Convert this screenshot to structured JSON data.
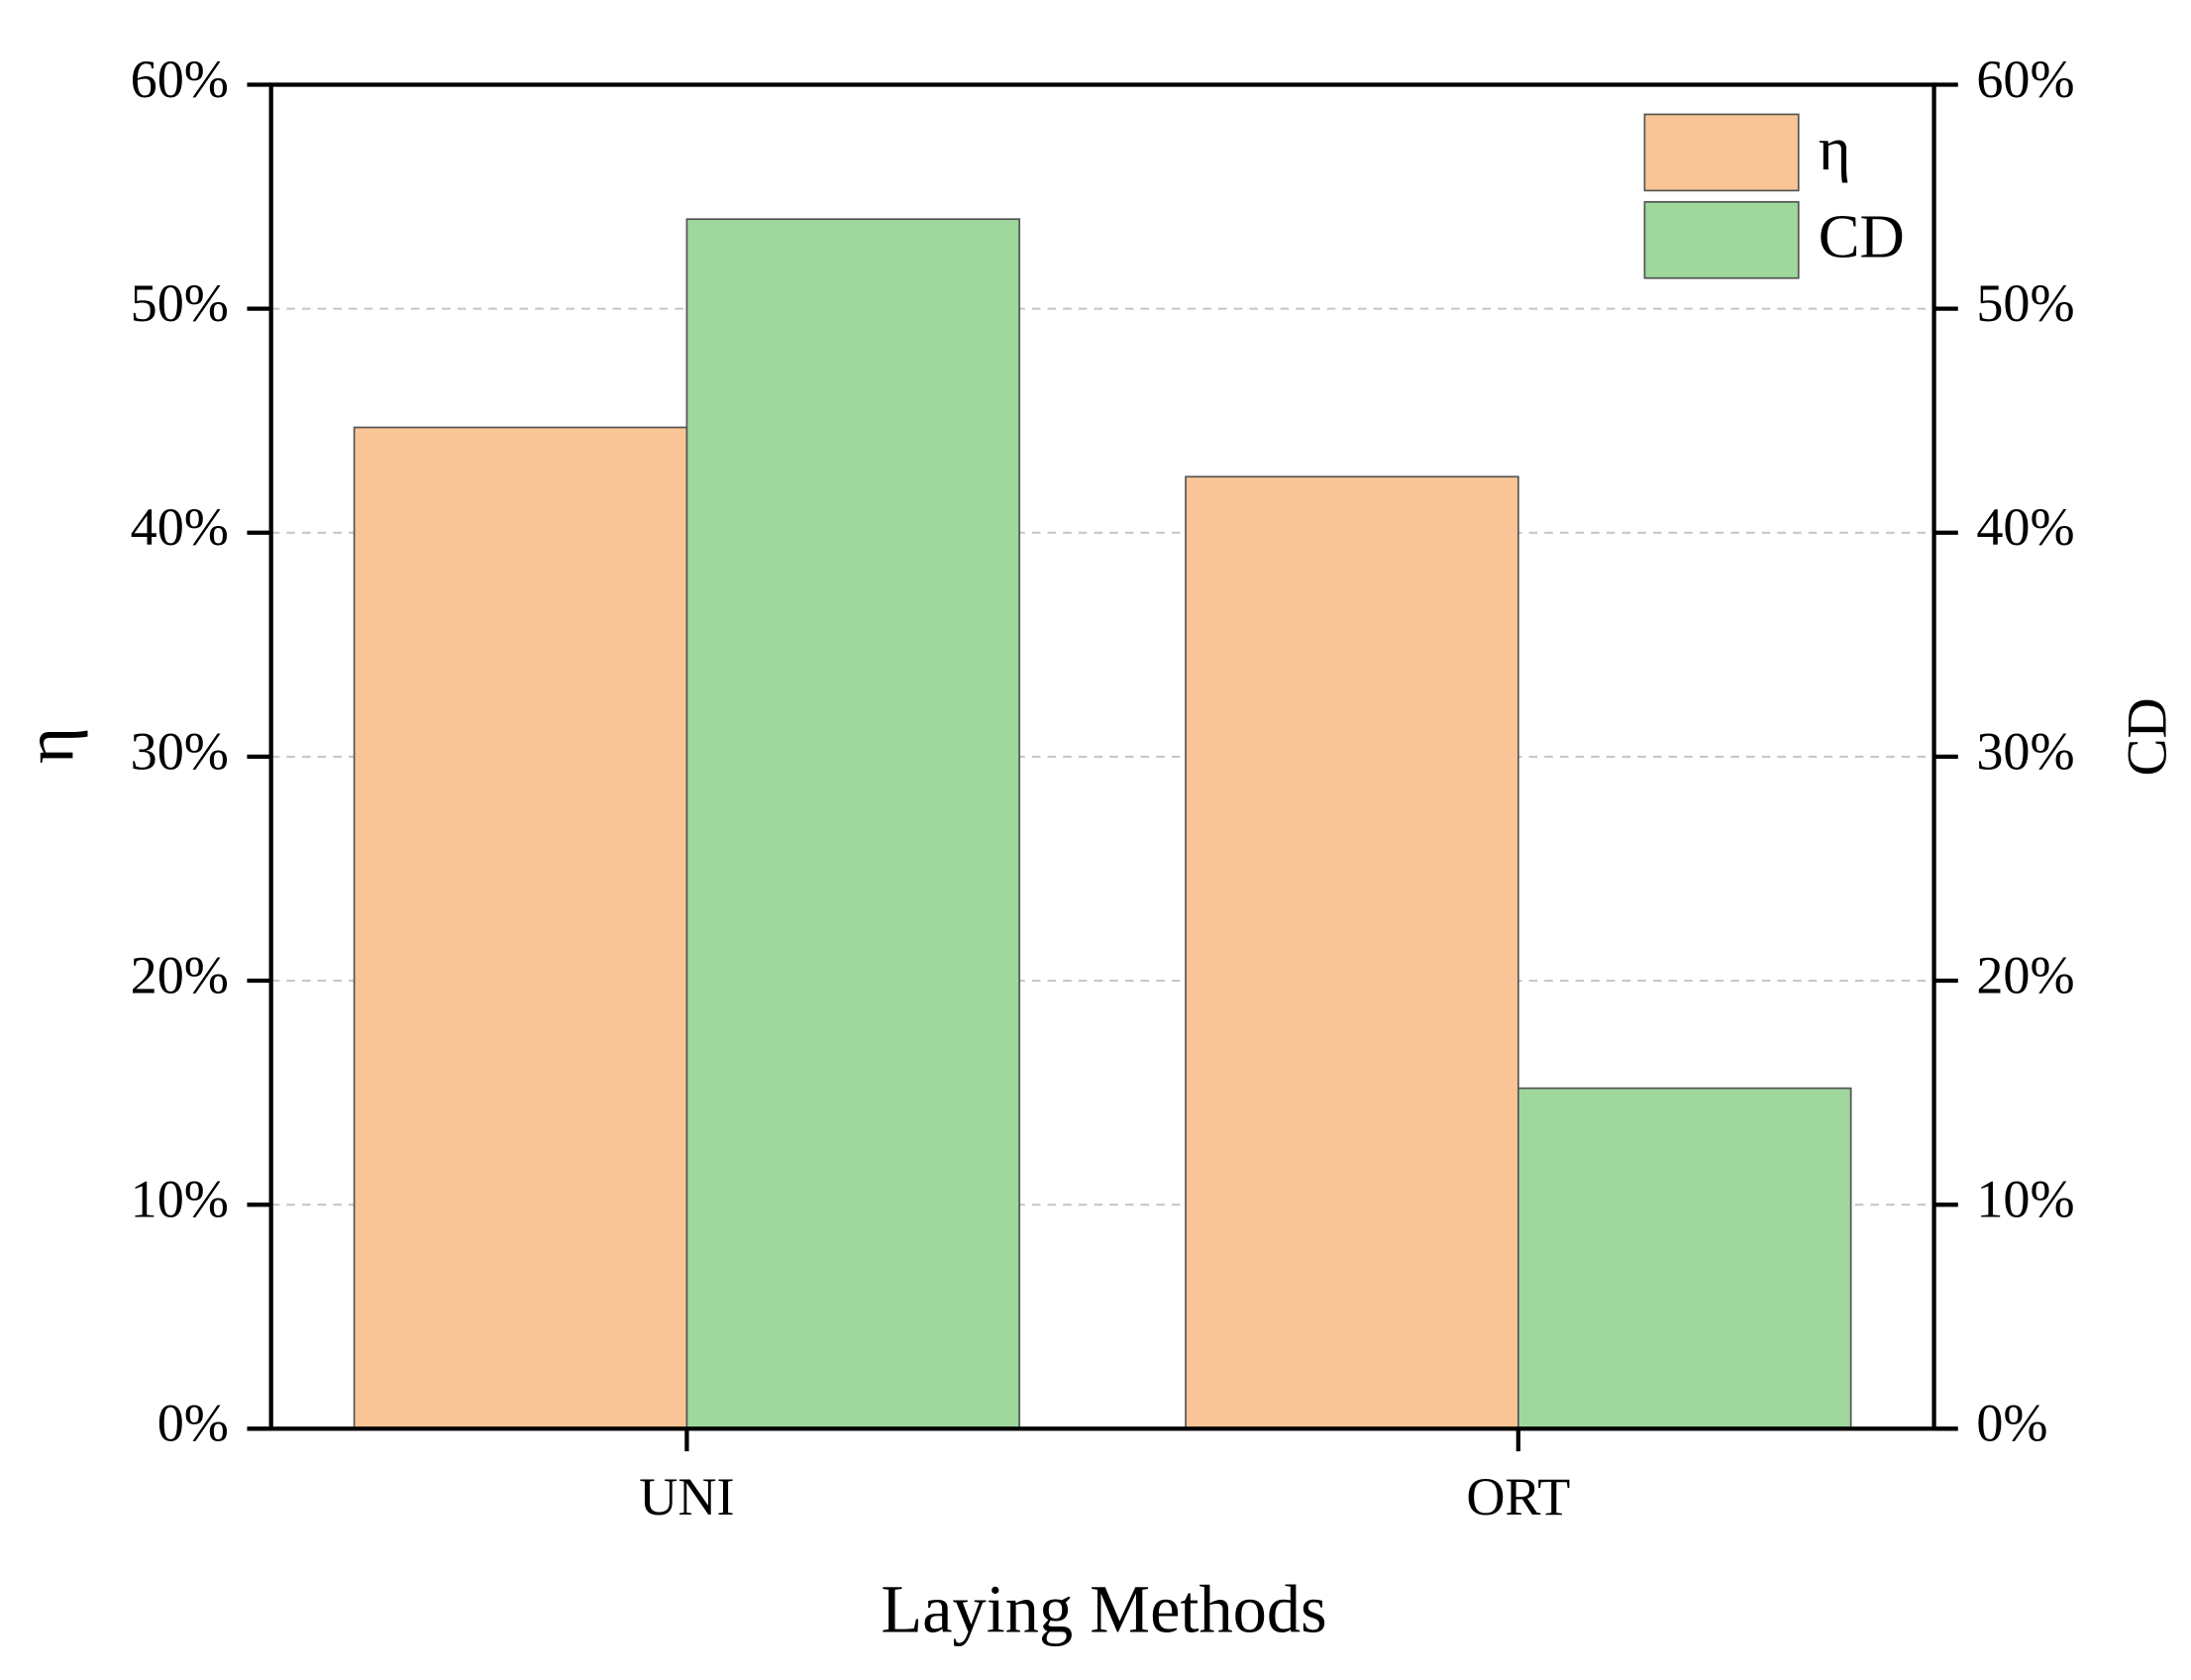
{
  "chart_data": {
    "type": "bar",
    "x_label": "Laying Methods",
    "y_label": "η",
    "y2_label": "CD",
    "categories": [
      "UNI",
      "ORT"
    ],
    "series": [
      {
        "name": "η",
        "color": "#fac596",
        "values": [
          44.7,
          42.5
        ]
      },
      {
        "name": "CD",
        "color": "#9fd79c",
        "values": [
          54.0,
          15.2
        ],
        "axis": "y2"
      }
    ],
    "ylim": [
      0,
      60
    ],
    "yticks": [
      {
        "value": 0,
        "label": "0%"
      },
      {
        "value": 10,
        "label": "10%"
      },
      {
        "value": 20,
        "label": "20%"
      },
      {
        "value": 30,
        "label": "30%"
      },
      {
        "value": 40,
        "label": "40%"
      },
      {
        "value": 50,
        "label": "50%"
      },
      {
        "value": 60,
        "label": "60%"
      }
    ],
    "y2lim": [
      0,
      60
    ],
    "y2ticks": [
      {
        "value": 0,
        "label": "0%"
      },
      {
        "value": 10,
        "label": "10%"
      },
      {
        "value": 20,
        "label": "20%"
      },
      {
        "value": 30,
        "label": "30%"
      },
      {
        "value": 40,
        "label": "40%"
      },
      {
        "value": 50,
        "label": "50%"
      },
      {
        "value": 60,
        "label": "60%"
      }
    ],
    "grid": true,
    "legend": "upper right"
  }
}
